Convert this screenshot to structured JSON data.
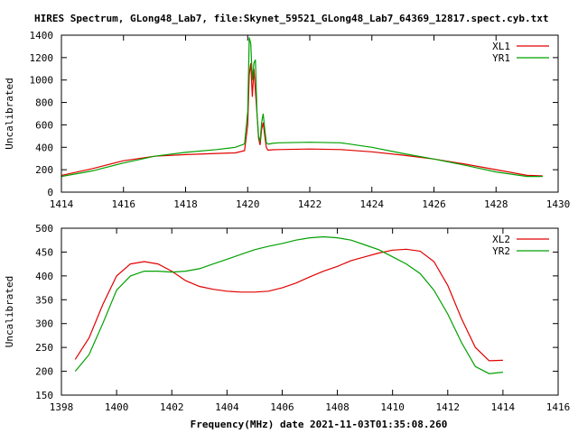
{
  "title": "HIRES Spectrum, GLong48_Lab7, file:Skynet_59521_GLong48_Lab7_64369_12817.spect.cyb.txt",
  "chart_data": [
    {
      "type": "line",
      "ylabel": "Uncalibrated",
      "xlabel": "",
      "xlim": [
        1414,
        1430
      ],
      "ylim": [
        0,
        1400
      ],
      "x_ticks": [
        "1414",
        "1416",
        "1418",
        "1420",
        "1422",
        "1424",
        "1426",
        "1428",
        "1430"
      ],
      "y_ticks": [
        "0",
        "200",
        "400",
        "600",
        "800",
        "1000",
        "1200",
        "1400"
      ],
      "legend": "top-right",
      "series": [
        {
          "name": "XL1",
          "color": "#e00000",
          "x": [
            1414.0,
            1415.0,
            1416.0,
            1417.0,
            1418.0,
            1419.0,
            1419.6,
            1419.9,
            1420.0,
            1420.05,
            1420.1,
            1420.15,
            1420.2,
            1420.25,
            1420.3,
            1420.35,
            1420.4,
            1420.45,
            1420.5,
            1420.55,
            1420.6,
            1420.65,
            1420.7,
            1420.8,
            1421.0,
            1422.0,
            1423.0,
            1424.0,
            1425.0,
            1426.0,
            1427.0,
            1428.0,
            1429.0,
            1429.5
          ],
          "y": [
            150,
            210,
            280,
            320,
            335,
            345,
            350,
            370,
            600,
            1050,
            1150,
            850,
            1100,
            900,
            700,
            480,
            420,
            560,
            620,
            500,
            400,
            375,
            375,
            378,
            380,
            385,
            380,
            360,
            330,
            295,
            250,
            200,
            150,
            145
          ]
        },
        {
          "name": "YR1",
          "color": "#00a000",
          "x": [
            1414.0,
            1415.0,
            1416.0,
            1417.0,
            1418.0,
            1419.0,
            1419.6,
            1419.9,
            1420.0,
            1420.05,
            1420.1,
            1420.15,
            1420.2,
            1420.25,
            1420.3,
            1420.35,
            1420.4,
            1420.45,
            1420.5,
            1420.55,
            1420.6,
            1420.65,
            1420.7,
            1420.8,
            1421.0,
            1422.0,
            1423.0,
            1424.0,
            1425.0,
            1426.0,
            1427.0,
            1428.0,
            1429.0,
            1429.5
          ],
          "y": [
            140,
            190,
            260,
            320,
            355,
            380,
            400,
            430,
            720,
            1380,
            1320,
            1000,
            1150,
            1180,
            700,
            500,
            450,
            620,
            700,
            560,
            440,
            430,
            430,
            435,
            440,
            445,
            440,
            400,
            345,
            295,
            240,
            180,
            140,
            140
          ]
        }
      ]
    },
    {
      "type": "line",
      "ylabel": "Uncalibrated",
      "xlabel": "Frequency(MHz) date 2021-11-03T01:35:08.260",
      "xlim": [
        1398,
        1416
      ],
      "ylim": [
        150,
        500
      ],
      "x_ticks": [
        "1398",
        "1400",
        "1402",
        "1404",
        "1406",
        "1408",
        "1410",
        "1412",
        "1414",
        "1416"
      ],
      "y_ticks": [
        "150",
        "200",
        "250",
        "300",
        "350",
        "400",
        "450",
        "500"
      ],
      "legend": "top-right",
      "series": [
        {
          "name": "XL2",
          "color": "#e00000",
          "x": [
            1398.5,
            1399.0,
            1399.5,
            1400.0,
            1400.5,
            1401.0,
            1401.5,
            1402.0,
            1402.5,
            1403.0,
            1403.5,
            1404.0,
            1404.5,
            1405.0,
            1405.5,
            1406.0,
            1406.5,
            1407.0,
            1407.5,
            1408.0,
            1408.5,
            1409.0,
            1409.5,
            1410.0,
            1410.5,
            1411.0,
            1411.5,
            1412.0,
            1412.5,
            1413.0,
            1413.5,
            1414.0
          ],
          "y": [
            225,
            270,
            340,
            400,
            425,
            430,
            425,
            410,
            390,
            378,
            372,
            368,
            366,
            366,
            368,
            375,
            385,
            398,
            410,
            420,
            432,
            440,
            448,
            454,
            456,
            452,
            430,
            380,
            310,
            250,
            222,
            223
          ]
        },
        {
          "name": "YR2",
          "color": "#00a000",
          "x": [
            1398.5,
            1399.0,
            1399.5,
            1400.0,
            1400.5,
            1401.0,
            1401.5,
            1402.0,
            1402.5,
            1403.0,
            1403.5,
            1404.0,
            1404.5,
            1405.0,
            1405.5,
            1406.0,
            1406.5,
            1407.0,
            1407.5,
            1408.0,
            1408.5,
            1409.0,
            1409.5,
            1410.0,
            1410.5,
            1411.0,
            1411.5,
            1412.0,
            1412.5,
            1413.0,
            1413.5,
            1414.0
          ],
          "y": [
            200,
            235,
            300,
            370,
            400,
            410,
            410,
            408,
            410,
            415,
            425,
            435,
            445,
            455,
            462,
            468,
            475,
            480,
            482,
            480,
            475,
            465,
            455,
            440,
            425,
            405,
            370,
            320,
            260,
            210,
            195,
            198
          ]
        }
      ]
    }
  ]
}
